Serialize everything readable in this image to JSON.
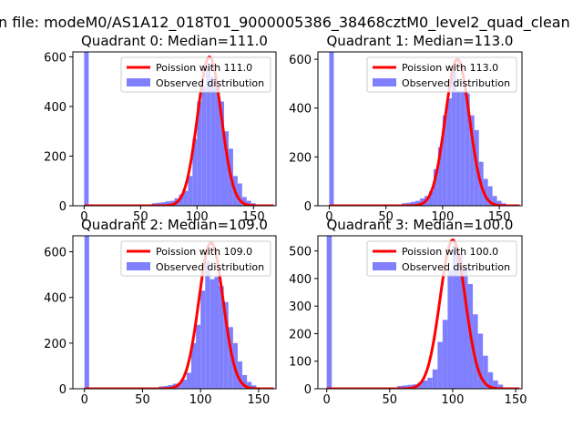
{
  "suptitle": "n file: modeM0/AS1A12_018T01_9000005386_38468cztM0_level2_quad_clean",
  "legend_labels": {
    "poisson_prefix": "Poission with ",
    "observed": "Observed distribution"
  },
  "colors": {
    "poisson": "#ff0000",
    "hist": "#8080ff"
  },
  "chart_data": [
    {
      "type": "bar",
      "title": "Quadrant 0: Median=111.0",
      "median": 111.0,
      "poisson_label": "Poission with 111.0",
      "xlim": [
        -10,
        170
      ],
      "ylim": [
        0,
        620
      ],
      "xticks": [
        0,
        50,
        100,
        150
      ],
      "yticks": [
        0,
        200,
        400,
        600
      ],
      "legend": "top-right",
      "zero_bin_clipped": true,
      "hist_bins": [
        [
          0,
          620
        ],
        [
          60,
          10
        ],
        [
          64,
          12
        ],
        [
          68,
          14
        ],
        [
          72,
          18
        ],
        [
          76,
          20
        ],
        [
          80,
          30
        ],
        [
          84,
          45
        ],
        [
          88,
          60
        ],
        [
          92,
          120
        ],
        [
          96,
          270
        ],
        [
          100,
          420
        ],
        [
          104,
          480
        ],
        [
          108,
          560
        ],
        [
          112,
          520
        ],
        [
          116,
          480
        ],
        [
          120,
          420
        ],
        [
          124,
          300
        ],
        [
          128,
          230
        ],
        [
          132,
          120
        ],
        [
          136,
          90
        ],
        [
          140,
          35
        ],
        [
          144,
          20
        ],
        [
          148,
          10
        ]
      ],
      "poisson_peak": 600
    },
    {
      "type": "bar",
      "title": "Quadrant 1: Median=113.0",
      "median": 113.0,
      "poisson_label": "Poission with 113.0",
      "xlim": [
        -10,
        170
      ],
      "ylim": [
        0,
        630
      ],
      "xticks": [
        0,
        50,
        100,
        150
      ],
      "yticks": [
        0,
        200,
        400,
        600
      ],
      "legend": "top-right",
      "zero_bin_clipped": true,
      "hist_bins": [
        [
          0,
          630
        ],
        [
          64,
          10
        ],
        [
          68,
          12
        ],
        [
          72,
          16
        ],
        [
          76,
          20
        ],
        [
          80,
          30
        ],
        [
          84,
          40
        ],
        [
          88,
          60
        ],
        [
          92,
          150
        ],
        [
          96,
          240
        ],
        [
          100,
          370
        ],
        [
          104,
          440
        ],
        [
          108,
          550
        ],
        [
          112,
          470
        ],
        [
          116,
          470
        ],
        [
          120,
          460
        ],
        [
          124,
          370
        ],
        [
          128,
          310
        ],
        [
          132,
          180
        ],
        [
          136,
          110
        ],
        [
          140,
          80
        ],
        [
          144,
          40
        ],
        [
          148,
          20
        ],
        [
          152,
          10
        ]
      ],
      "poisson_peak": 600
    },
    {
      "type": "bar",
      "title": "Quadrant 2: Median=109.0",
      "median": 109.0,
      "poisson_label": "Poission with 109.0",
      "xlim": [
        -10,
        165
      ],
      "ylim": [
        0,
        670
      ],
      "xticks": [
        0,
        50,
        100,
        150
      ],
      "yticks": [
        0,
        200,
        400,
        600
      ],
      "legend": "top-right",
      "zero_bin_clipped": true,
      "hist_bins": [
        [
          0,
          670
        ],
        [
          64,
          10
        ],
        [
          68,
          12
        ],
        [
          72,
          16
        ],
        [
          76,
          22
        ],
        [
          80,
          25
        ],
        [
          84,
          40
        ],
        [
          88,
          70
        ],
        [
          92,
          200
        ],
        [
          96,
          280
        ],
        [
          100,
          430
        ],
        [
          104,
          560
        ],
        [
          108,
          480
        ],
        [
          112,
          490
        ],
        [
          116,
          450
        ],
        [
          120,
          380
        ],
        [
          124,
          270
        ],
        [
          128,
          200
        ],
        [
          132,
          120
        ],
        [
          136,
          60
        ],
        [
          140,
          30
        ],
        [
          144,
          15
        ]
      ],
      "poisson_peak": 640
    },
    {
      "type": "bar",
      "title": "Quadrant 3: Median=100.0",
      "median": 100.0,
      "poisson_label": "Poission with 100.0",
      "xlim": [
        -7,
        155
      ],
      "ylim": [
        0,
        555
      ],
      "xticks": [
        0,
        50,
        100,
        150
      ],
      "yticks": [
        0,
        100,
        200,
        300,
        400,
        500
      ],
      "legend": "top-right",
      "zero_bin_clipped": true,
      "hist_bins": [
        [
          0,
          555
        ],
        [
          56,
          10
        ],
        [
          60,
          12
        ],
        [
          64,
          14
        ],
        [
          68,
          16
        ],
        [
          72,
          22
        ],
        [
          76,
          30
        ],
        [
          80,
          40
        ],
        [
          84,
          70
        ],
        [
          88,
          170
        ],
        [
          92,
          250
        ],
        [
          96,
          430
        ],
        [
          100,
          520
        ],
        [
          104,
          490
        ],
        [
          108,
          440
        ],
        [
          112,
          380
        ],
        [
          116,
          270
        ],
        [
          120,
          200
        ],
        [
          124,
          120
        ],
        [
          128,
          60
        ],
        [
          132,
          30
        ],
        [
          136,
          15
        ]
      ],
      "poisson_peak": 540
    }
  ]
}
